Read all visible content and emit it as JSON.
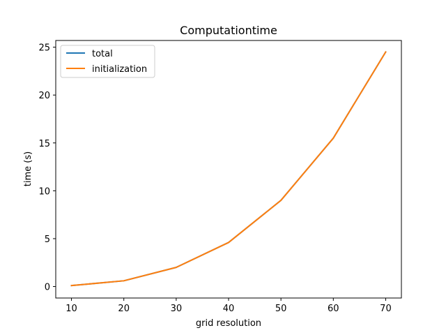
{
  "chart_data": {
    "type": "line",
    "title": "Computationtime",
    "xlabel": "grid resolution",
    "ylabel": "time (s)",
    "xlim": [
      7,
      73
    ],
    "ylim": [
      -1.2,
      25.7
    ],
    "xticks": [
      10,
      20,
      30,
      40,
      50,
      60,
      70
    ],
    "yticks": [
      0,
      5,
      10,
      15,
      20,
      25
    ],
    "grid": false,
    "legend_position": "top-left",
    "series": [
      {
        "name": "total",
        "color": "#1f77b4",
        "x": [
          10,
          20,
          30,
          40,
          50,
          60,
          70
        ],
        "y": [
          0.1,
          0.6,
          2.0,
          4.6,
          9.0,
          15.5,
          24.5
        ]
      },
      {
        "name": "initialization",
        "color": "#ff7f0e",
        "x": [
          10,
          20,
          30,
          40,
          50,
          60,
          70
        ],
        "y": [
          0.1,
          0.6,
          2.0,
          4.6,
          9.0,
          15.5,
          24.5
        ]
      }
    ]
  }
}
